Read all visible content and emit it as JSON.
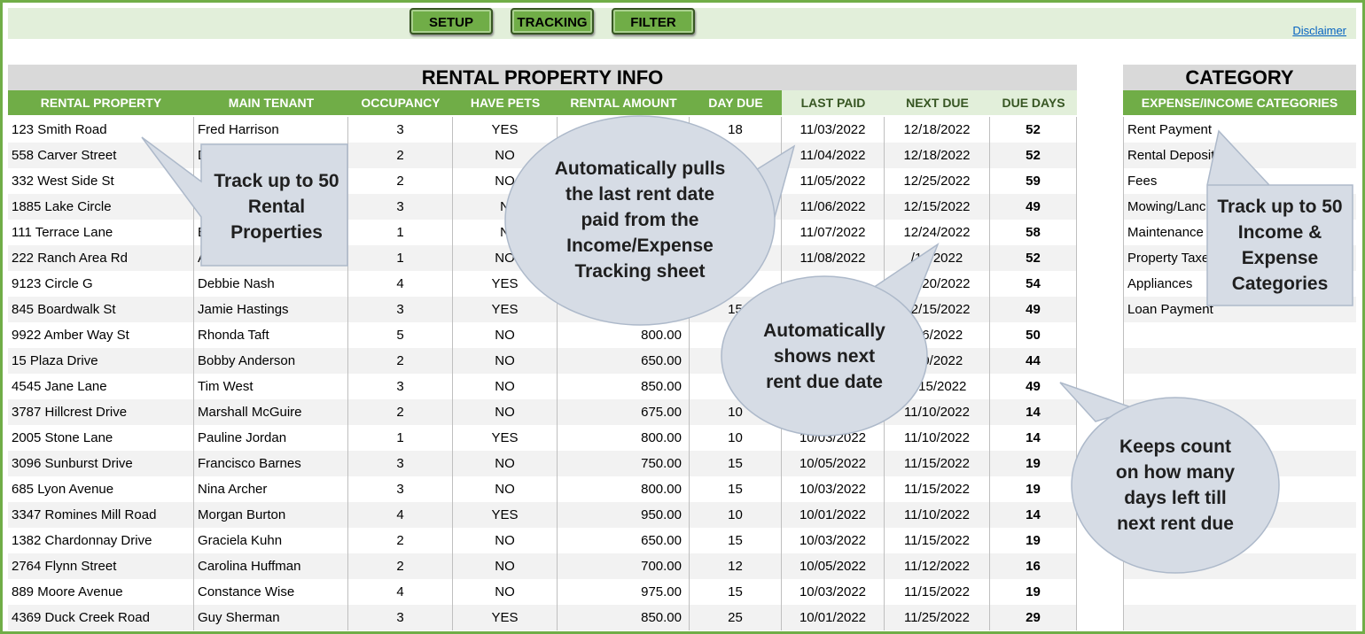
{
  "toolbar": {
    "setup": "SETUP",
    "tracking": "TRACKING",
    "filter": "FILTER",
    "disclaimer": "Disclaimer"
  },
  "section_titles": {
    "rental": "RENTAL PROPERTY INFO",
    "category": "CATEGORY"
  },
  "columns": [
    "RENTAL PROPERTY",
    "MAIN TENANT",
    "OCCUPANCY",
    "HAVE PETS",
    "RENTAL AMOUNT",
    "DAY DUE",
    "LAST PAID",
    "NEXT DUE",
    "DUE DAYS"
  ],
  "category_header": "EXPENSE/INCOME CATEGORIES",
  "rows": [
    [
      "123 Smith Road",
      "Fred Harrison",
      "3",
      "YES",
      "",
      "18",
      "11/03/2022",
      "12/18/2022",
      "52"
    ],
    [
      "558 Carver Street",
      "D",
      "2",
      "NO",
      "",
      "",
      "11/04/2022",
      "12/18/2022",
      "52"
    ],
    [
      "332 West Side St",
      "",
      "2",
      "NO",
      "",
      "",
      "11/05/2022",
      "12/25/2022",
      "59"
    ],
    [
      "1885 Lake Circle",
      "M",
      "3",
      "N",
      "",
      "",
      "11/06/2022",
      "12/15/2022",
      "49"
    ],
    [
      "111 Terrace Lane",
      "B",
      "1",
      "N",
      "",
      "",
      "11/07/2022",
      "12/24/2022",
      "58"
    ],
    [
      "222 Ranch Area Rd",
      "A",
      "1",
      "NO",
      "",
      "",
      "11/08/2022",
      "/18/2022",
      "52"
    ],
    [
      "9123 Circle G",
      "Debbie Nash",
      "4",
      "YES",
      "",
      "",
      "",
      "12/20/2022",
      "54"
    ],
    [
      "845 Boardwalk St",
      "Jamie Hastings",
      "3",
      "YES",
      "",
      "15",
      "",
      "12/15/2022",
      "49"
    ],
    [
      "9922 Amber Way St",
      "Rhonda Taft",
      "5",
      "NO",
      "800.00",
      "",
      "",
      "/16/2022",
      "50"
    ],
    [
      "15 Plaza Drive",
      "Bobby Anderson",
      "2",
      "NO",
      "650.00",
      "",
      "",
      "/10/2022",
      "44"
    ],
    [
      "4545 Jane Lane",
      "Tim West",
      "3",
      "NO",
      "850.00",
      "1",
      "",
      "2/15/2022",
      "49"
    ],
    [
      "3787 Hillcrest Drive",
      "Marshall McGuire",
      "2",
      "NO",
      "675.00",
      "10",
      "",
      "11/10/2022",
      "14"
    ],
    [
      "2005 Stone Lane",
      "Pauline Jordan",
      "1",
      "YES",
      "800.00",
      "10",
      "10/03/2022",
      "11/10/2022",
      "14"
    ],
    [
      "3096 Sunburst Drive",
      "Francisco Barnes",
      "3",
      "NO",
      "750.00",
      "15",
      "10/05/2022",
      "11/15/2022",
      "19"
    ],
    [
      "685 Lyon Avenue",
      "Nina Archer",
      "3",
      "NO",
      "800.00",
      "15",
      "10/03/2022",
      "11/15/2022",
      "19"
    ],
    [
      "3347 Romines Mill Road",
      "Morgan Burton",
      "4",
      "YES",
      "950.00",
      "10",
      "10/01/2022",
      "11/10/2022",
      "14"
    ],
    [
      "1382 Chardonnay Drive",
      "Graciela Kuhn",
      "2",
      "NO",
      "650.00",
      "15",
      "10/03/2022",
      "11/15/2022",
      "19"
    ],
    [
      "2764 Flynn Street",
      "Carolina Huffman",
      "2",
      "NO",
      "700.00",
      "12",
      "10/05/2022",
      "11/12/2022",
      "16"
    ],
    [
      "889 Moore Avenue",
      "Constance Wise",
      "4",
      "NO",
      "975.00",
      "15",
      "10/03/2022",
      "11/15/2022",
      "19"
    ],
    [
      "4369 Duck Creek Road",
      "Guy Sherman",
      "3",
      "YES",
      "850.00",
      "25",
      "10/01/2022",
      "11/25/2022",
      "29"
    ]
  ],
  "categories": [
    "Rent Payment",
    "Rental Deposit",
    "Fees",
    "Mowing/Lanc",
    "Maintenance",
    "Property Taxe",
    "Appliances",
    "Loan Payment",
    "",
    "",
    "",
    "",
    "",
    "",
    "",
    "",
    "",
    "",
    "",
    ""
  ],
  "callouts": {
    "properties": [
      "Track up to 50",
      "Rental",
      "Properties"
    ],
    "last_paid": [
      "Automatically pulls",
      "the last rent date",
      "paid from the",
      "Income/Expense",
      "Tracking sheet"
    ],
    "next_due": [
      "Automatically",
      "shows next",
      "rent due date"
    ],
    "due_days": [
      "Keeps count",
      "on how many",
      "days left till",
      "next rent due"
    ],
    "categories": [
      "Track up to 50",
      "Income &",
      "Expense",
      "Categories"
    ]
  },
  "colors": {
    "green": "#70ad47",
    "light_green": "#e2efda",
    "callout_fill": "#d6dce5",
    "callout_stroke": "#adb9ca"
  }
}
